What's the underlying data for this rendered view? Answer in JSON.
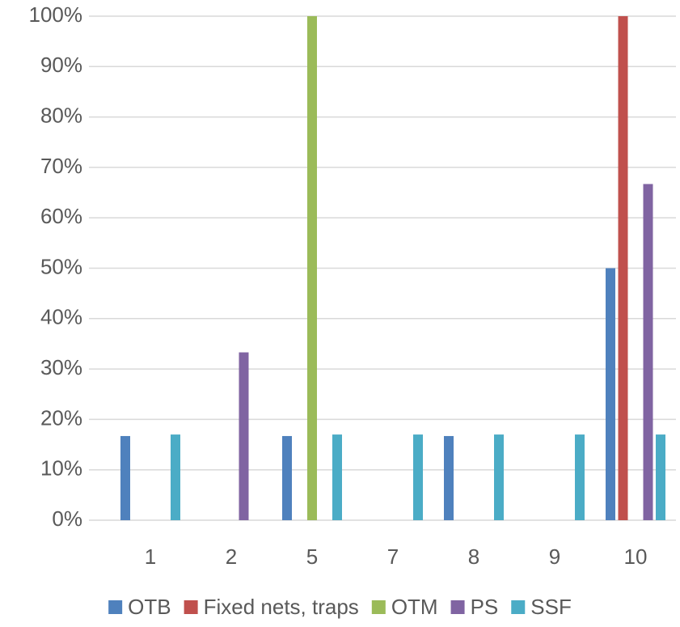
{
  "chart_data": {
    "type": "bar",
    "categories": [
      "1",
      "2",
      "5",
      "7",
      "8",
      "9",
      "10"
    ],
    "series": [
      {
        "name": "OTB",
        "color": "#4f81bd",
        "values": [
          16.7,
          0,
          16.7,
          0,
          16.7,
          0,
          50
        ]
      },
      {
        "name": "Fixed nets, traps",
        "color": "#c0504d",
        "values": [
          0,
          0,
          0,
          0,
          0,
          0,
          100
        ]
      },
      {
        "name": "OTM",
        "color": "#9bbb59",
        "values": [
          0,
          0,
          100,
          0,
          0,
          0,
          0
        ]
      },
      {
        "name": "PS",
        "color": "#8064a2",
        "values": [
          0,
          33.3,
          0,
          0,
          0,
          0,
          66.7
        ]
      },
      {
        "name": "SSF",
        "color": "#4bacc6",
        "values": [
          17,
          0,
          17,
          17,
          17,
          17,
          17
        ]
      }
    ],
    "ylim": [
      0,
      100
    ],
    "yticks": [
      {
        "value": 0,
        "label": "0%"
      },
      {
        "value": 10,
        "label": "10%"
      },
      {
        "value": 20,
        "label": "20%"
      },
      {
        "value": 30,
        "label": "30%"
      },
      {
        "value": 40,
        "label": "40%"
      },
      {
        "value": 50,
        "label": "50%"
      },
      {
        "value": 60,
        "label": "60%"
      },
      {
        "value": 70,
        "label": "70%"
      },
      {
        "value": 80,
        "label": "80%"
      },
      {
        "value": 90,
        "label": "90%"
      },
      {
        "value": 100,
        "label": "100%"
      }
    ],
    "grid": true,
    "legend": "bottom"
  }
}
